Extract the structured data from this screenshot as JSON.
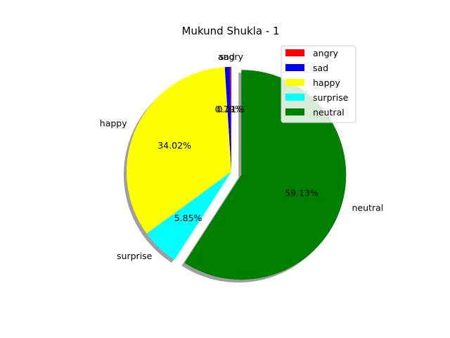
{
  "chart_data": {
    "type": "pie",
    "title": "Mukund Shukla - 1",
    "start_angle_deg": 90,
    "direction": "counterclockwise",
    "shadow": true,
    "exploded": "neutral",
    "legend_position": "upper-right",
    "slices": [
      {
        "label": "angry",
        "value": 0.21,
        "pct_label": "0.21%",
        "color": "#ff0000"
      },
      {
        "label": "sad",
        "value": 0.79,
        "pct_label": "0.79%",
        "color": "#0000ff"
      },
      {
        "label": "happy",
        "value": 34.02,
        "pct_label": "34.02%",
        "color": "#ffff00"
      },
      {
        "label": "surprise",
        "value": 5.85,
        "pct_label": "5.85%",
        "color": "#00ffff"
      },
      {
        "label": "neutral",
        "value": 59.13,
        "pct_label": "59.13%",
        "color": "#008000"
      }
    ]
  }
}
